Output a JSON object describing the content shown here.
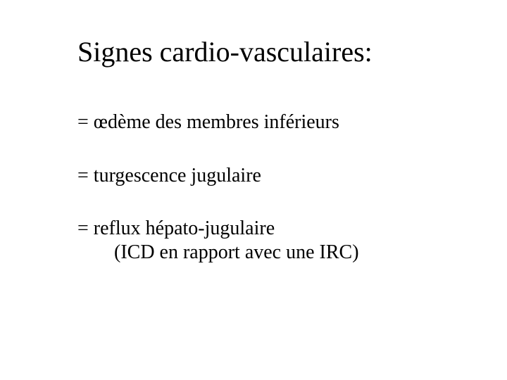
{
  "slide": {
    "title": "Signes cardio-vasculaires:",
    "items": [
      {
        "text": "= œdème des membres inférieurs"
      },
      {
        "text": "= turgescence jugulaire"
      },
      {
        "text": "= reflux hépato-jugulaire",
        "sub": "(ICD en rapport avec une IRC)"
      }
    ],
    "colors": {
      "background": "#ffffff",
      "text": "#000000"
    },
    "typography": {
      "title_fontsize": 40,
      "item_fontsize": 28,
      "font_family": "Times New Roman"
    }
  }
}
